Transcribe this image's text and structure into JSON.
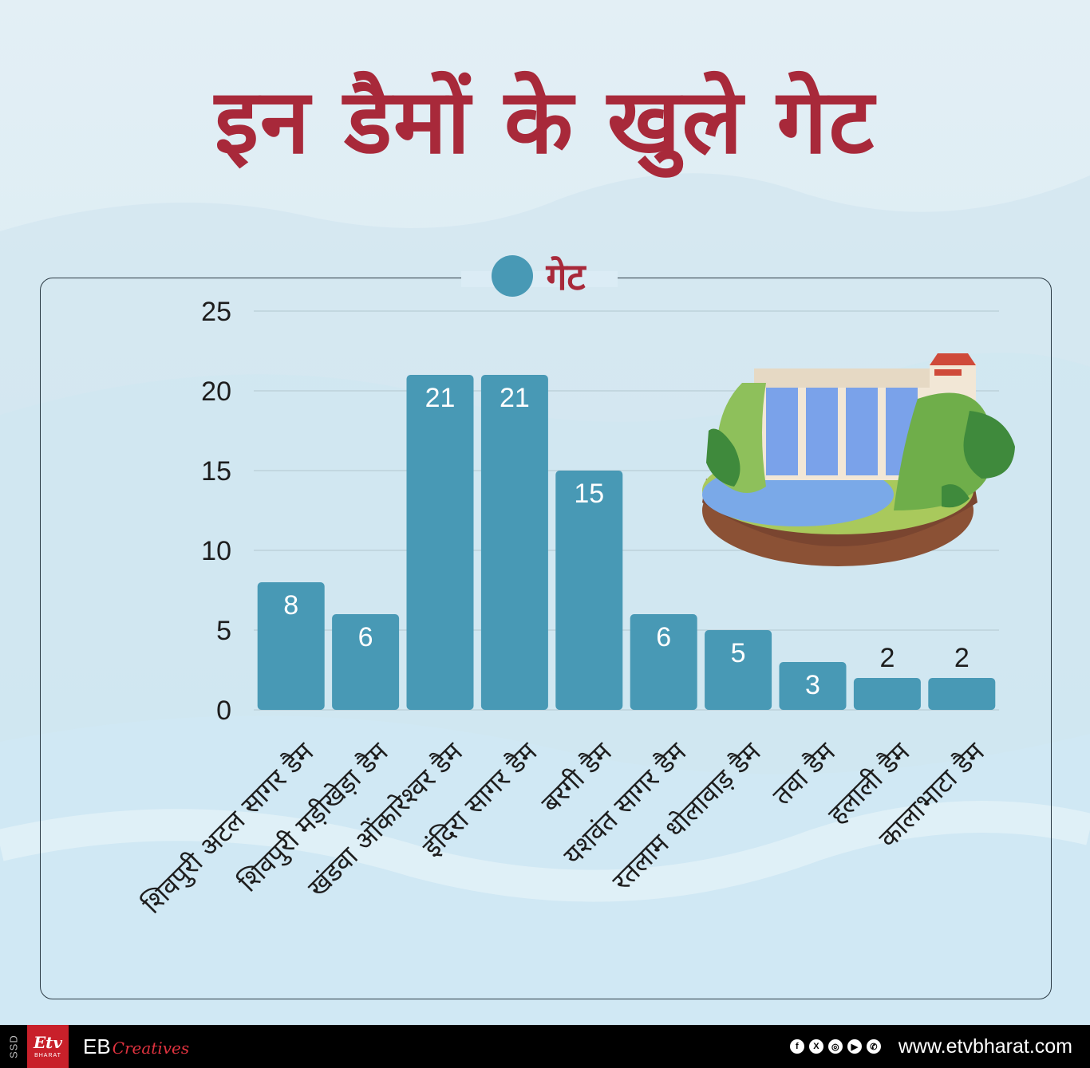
{
  "title": "इन डैमों के खुले गेट",
  "legend": {
    "label": "गेट",
    "color": "#4899b5"
  },
  "chart_data": {
    "type": "bar",
    "title": "इन डैमों के खुले गेट",
    "xlabel": "",
    "ylabel": "",
    "ylim": [
      0,
      25
    ],
    "yticks": [
      "0",
      "5",
      "10",
      "15",
      "20",
      "25"
    ],
    "grid": true,
    "legend_position": "top",
    "categories": [
      "शिवपुरी अटल सागर डैम",
      "शिवपुरी मड़ीखेड़ा डैम",
      "खंडवा ओंकारेश्वर डैम",
      "इंदिरा सागर डैम",
      "बरगी डैम",
      "यशवंत सागर डैम",
      "रतलाम धोलावाड़ डैम",
      "तवा डैम",
      "हलाली डैम",
      "कालाभाटा डैम"
    ],
    "series": [
      {
        "name": "गेट",
        "color": "#4899b5",
        "values": [
          8,
          6,
          21,
          21,
          15,
          6,
          5,
          3,
          2,
          2
        ]
      }
    ]
  },
  "footer": {
    "ssd": "SSD",
    "etv_mark": "Etv",
    "etv_sub": "BHARAT",
    "eb_main": "EB",
    "eb_sub": "Creatives",
    "social_icons": [
      "facebook-icon",
      "x-icon",
      "instagram-icon",
      "youtube-icon",
      "whatsapp-icon"
    ],
    "social_glyphs": [
      "f",
      "X",
      "◎",
      "▶",
      "✆"
    ],
    "website": "www.etvbharat.com"
  }
}
